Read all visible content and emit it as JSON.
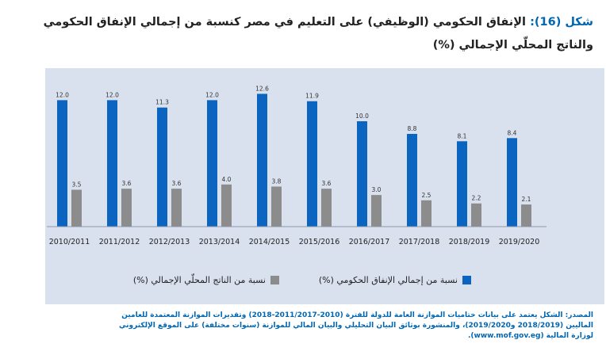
{
  "title": {
    "label": "شكل (16):",
    "text": "الإنفاق الحكومي (الوظيفي) على التعليم في مصر كنسبة من إجمالي الإنفاق الحكومي والناتج المحلّي الإجمالي (%)"
  },
  "colors": {
    "series_1": "#0b64c0",
    "series_2": "#8c8c8c",
    "panel": "#d9e1ee",
    "title_accent": "#0066b3",
    "source_text": "#0066b3"
  },
  "chart_data": {
    "type": "bar",
    "title": "",
    "xlabel": "",
    "ylabel": "",
    "ylim": [
      0,
      14
    ],
    "grid": false,
    "legend_position": "bottom",
    "categories": [
      "2010/2011",
      "2011/2012",
      "2012/2013",
      "2013/2014",
      "2014/2015",
      "2015/2016",
      "2016/2017",
      "2017/2018",
      "2018/2019",
      "2019/2020"
    ],
    "series": [
      {
        "name": "نسبة من إجمالي الإنفاق الحكومي (%)",
        "values": [
          12.0,
          12.0,
          11.3,
          12.0,
          12.6,
          11.9,
          10.0,
          8.8,
          8.1,
          8.4
        ],
        "labels": [
          "12.0",
          "12.0",
          "11.3",
          "12.0",
          "12.6",
          "11.9",
          "10.0",
          "8.8",
          "8.1",
          "8.4"
        ]
      },
      {
        "name": "نسبة من الناتج المحلّي الإجمالي (%)",
        "values": [
          3.5,
          3.6,
          3.6,
          4.0,
          3.8,
          3.6,
          3.0,
          2.5,
          2.2,
          2.1
        ],
        "labels": [
          "3.5",
          "3.6",
          "3.6",
          "4.0",
          "3.8",
          "3.6",
          "3.0",
          "2.5",
          "2.2",
          "2.1"
        ]
      }
    ]
  },
  "source": {
    "text": "المصدر: الشكل يعتمد على بيانات ختاميات الموازنة العامة للدولة للفترة (2010-2011/2017-2018) وتقديرات الموازنة المعتمدة للعامين الماليين (2018/2019 و2019/2020)، والمنشورة بوثائق البيان التحليلي والبيان المالي للموازنة (سنوات مختلفة) على الموقع الإلكتروني لوزارة المالية (www.mof.gov.eg)."
  }
}
